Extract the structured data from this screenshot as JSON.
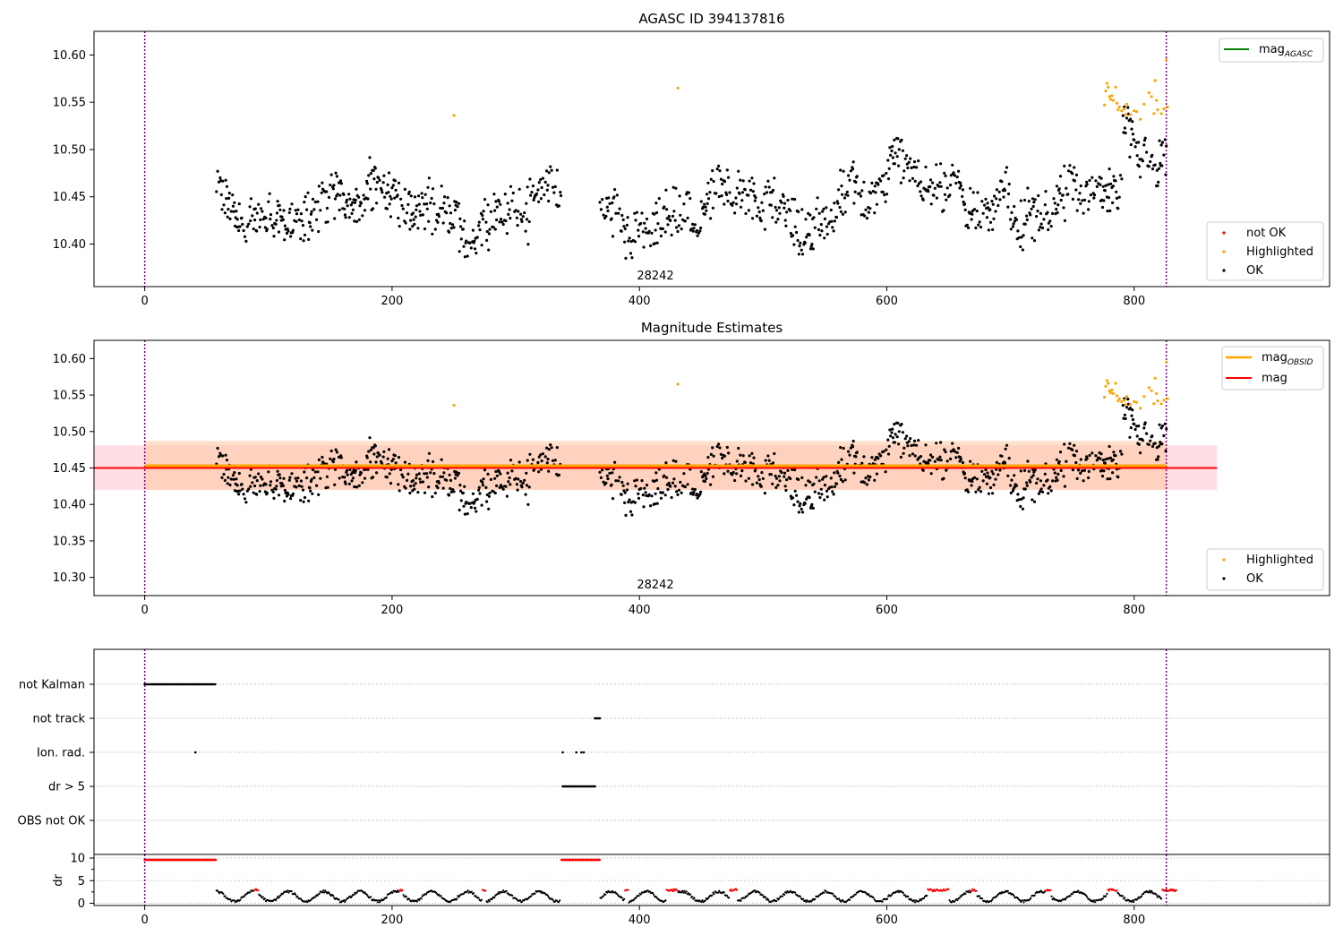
{
  "chart_data": [
    {
      "type": "scatter",
      "title": "AGASC ID 394137816",
      "annotation": "28242",
      "xlim": [
        -41,
        958
      ],
      "ylim": [
        10.355,
        10.625
      ],
      "xticks": [
        0,
        200,
        400,
        600,
        800
      ],
      "xtick_labels": [
        "0",
        "200",
        "400",
        "600",
        "800"
      ],
      "yticks": [
        10.4,
        10.45,
        10.5,
        10.55,
        10.6
      ],
      "ytick_labels": [
        "10.40",
        "10.45",
        "10.50",
        "10.55",
        "10.60"
      ],
      "vlines": [
        0,
        826
      ],
      "ok_x_range": [
        58,
        826
      ],
      "ok_gap": [
        336,
        368
      ],
      "highlighted_x": [
        250,
        431,
        776,
        777,
        778,
        779,
        780,
        781,
        782,
        783,
        785,
        786,
        787,
        788,
        790,
        792,
        793,
        794,
        797,
        800,
        802,
        805,
        808,
        812,
        814,
        816,
        817,
        818,
        819,
        822,
        824,
        826,
        827
      ],
      "highlighted_y": [
        10.536,
        10.565,
        10.547,
        10.562,
        10.57,
        10.566,
        10.556,
        10.553,
        10.557,
        10.552,
        10.566,
        10.549,
        10.542,
        10.545,
        10.541,
        10.543,
        10.537,
        10.548,
        10.537,
        10.541,
        10.54,
        10.532,
        10.548,
        10.56,
        10.556,
        10.538,
        10.573,
        10.552,
        10.542,
        10.538,
        10.543,
        10.595,
        10.545
      ],
      "series": [
        {
          "name": "not OK",
          "color": "#ff0000"
        },
        {
          "name": "Highlighted",
          "color": "#ffa500"
        },
        {
          "name": "OK",
          "color": "#000000"
        }
      ],
      "legend_upper": [
        {
          "name": "mag_AGASC",
          "color": "#008000"
        }
      ],
      "legend_placement": [
        "upper-right",
        "lower-right"
      ]
    },
    {
      "type": "scatter",
      "title": "Magnitude Estimates",
      "annotation": "28242",
      "xlim": [
        -41,
        958
      ],
      "ylim": [
        10.275,
        10.625
      ],
      "xticks": [
        0,
        200,
        400,
        600,
        800
      ],
      "xtick_labels": [
        "0",
        "200",
        "400",
        "600",
        "800"
      ],
      "yticks": [
        10.3,
        10.35,
        10.4,
        10.45,
        10.5,
        10.55,
        10.6
      ],
      "ytick_labels": [
        "10.30",
        "10.35",
        "10.40",
        "10.45",
        "10.50",
        "10.55",
        "10.60"
      ],
      "vlines": [
        0,
        826
      ],
      "mag": 10.45,
      "mag_band": [
        10.42,
        10.481
      ],
      "mag_band_x": [
        -41,
        867
      ],
      "mag_obsid": 10.453,
      "mag_obsid_band": [
        10.42,
        10.487
      ],
      "mag_obsid_x": [
        0,
        826
      ],
      "series": [
        {
          "name": "Highlighted",
          "color": "#ffa500"
        },
        {
          "name": "OK",
          "color": "#000000"
        }
      ],
      "legend_upper": [
        {
          "name": "mag_OBSID",
          "color": "#ffa500"
        },
        {
          "name": "mag",
          "color": "#ff0000"
        }
      ],
      "legend_placement": [
        "upper-right",
        "lower-right"
      ]
    },
    {
      "type": "scatter",
      "xlim": [
        -41,
        958
      ],
      "flag_categories": [
        "not Kalman",
        "not track",
        "Ion. rad.",
        "dr > 5",
        "OBS not OK"
      ],
      "flag_ranges": [
        {
          "category": "not Kalman",
          "segments": [
            [
              0,
              57
            ]
          ]
        },
        {
          "category": "not track",
          "segments": [
            [
              364,
              368
            ]
          ]
        },
        {
          "category": "Ion. rad.",
          "points": [
            41,
            338,
            349,
            353,
            355
          ]
        },
        {
          "category": "dr > 5",
          "segments": [
            [
              338,
              364
            ]
          ]
        },
        {
          "category": "OBS not OK",
          "segments": []
        }
      ],
      "dr_yticks": [
        0,
        5,
        10
      ],
      "dr_ytick_labels": [
        "0",
        "5",
        "10"
      ],
      "dr_ylim": [
        -0.5,
        10.8
      ],
      "ylabel": "dr",
      "dr_clipped_segments": [
        [
          0,
          58
        ],
        [
          337,
          368
        ]
      ],
      "dr_red_segments": [
        [
          88,
          92
        ],
        [
          206,
          209
        ],
        [
          273,
          276
        ],
        [
          388,
          391
        ],
        [
          422,
          431
        ],
        [
          473,
          479
        ],
        [
          633,
          650
        ],
        [
          668,
          673
        ],
        [
          728,
          733
        ],
        [
          778,
          786
        ],
        [
          822,
          835
        ]
      ],
      "xticks": [
        0,
        200,
        400,
        600,
        800
      ],
      "xtick_labels": [
        "0",
        "200",
        "400",
        "600",
        "800"
      ],
      "vlines": [
        0,
        826
      ]
    }
  ]
}
